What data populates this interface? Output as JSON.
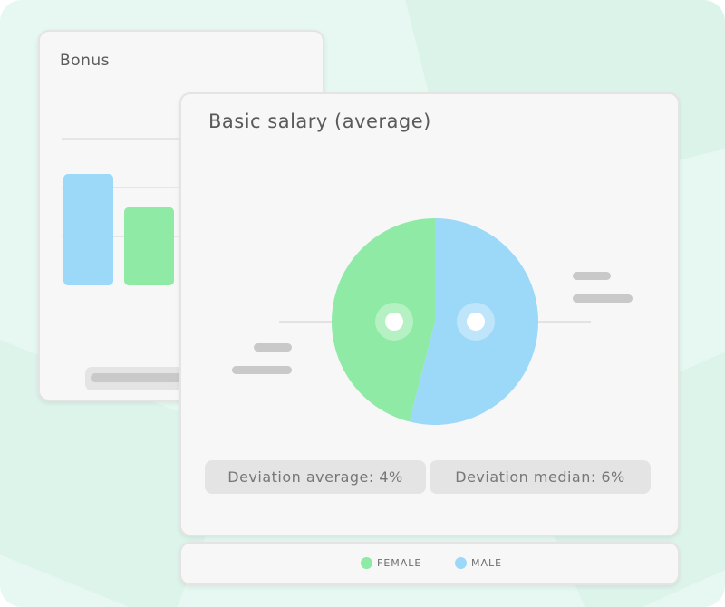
{
  "colors": {
    "female": "#8eeaa4",
    "male": "#9cd8f8",
    "background": "#e6f8f1"
  },
  "bonus_card": {
    "title": "Bonus"
  },
  "salary_card": {
    "title": "Basic salary (average)",
    "deviation_average": "Deviation average: 4%",
    "deviation_median": "Deviation median: 6%"
  },
  "legend": {
    "female": "FEMALE",
    "male": "MALE"
  },
  "chart_data": [
    {
      "type": "bar",
      "title": "Bonus",
      "categories": [
        "",
        ""
      ],
      "series": [
        {
          "name": "MALE",
          "values": [
            100,
            null
          ]
        },
        {
          "name": "FEMALE",
          "values": [
            null,
            70
          ]
        }
      ],
      "ylim": [
        0,
        100
      ],
      "grid": true
    },
    {
      "type": "pie",
      "title": "Basic salary (average)",
      "labels": [
        "FEMALE",
        "MALE"
      ],
      "values": [
        46,
        54
      ],
      "legend": "bottom"
    }
  ]
}
